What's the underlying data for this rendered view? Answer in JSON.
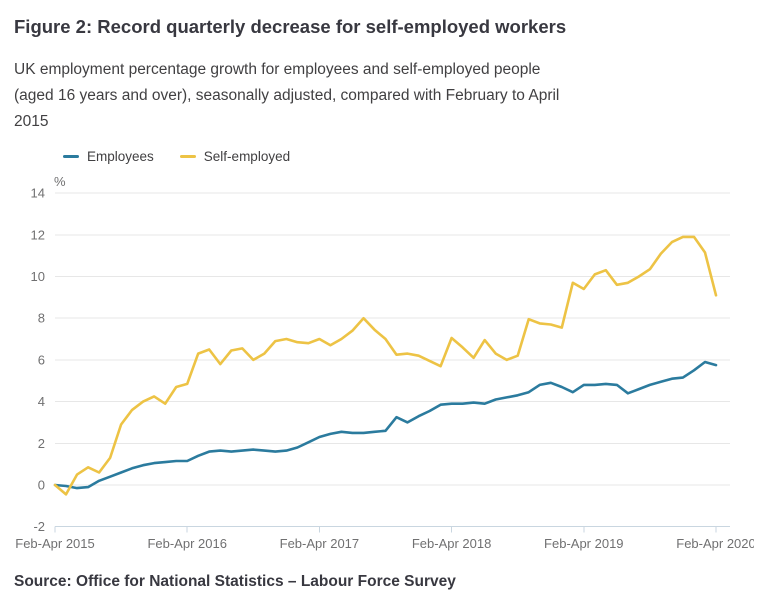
{
  "figure": {
    "title": "Figure 2: Record quarterly decrease for self-employed workers",
    "subtitle": "UK employment percentage growth for employees and self-employed people\n(aged 16 years and over), seasonally adjusted, compared with February to April\n2015",
    "source": "Source: Office for National Statistics – Labour Force Survey"
  },
  "colors": {
    "background": "#ffffff",
    "title_text": "#383840",
    "body_text": "#414042",
    "tick_text": "#707071",
    "gridline": "#e7e7e7",
    "axis_line": "#c9d6e0",
    "employees_line": "#2b7b9e",
    "self_employed_line": "#edc345"
  },
  "chart_data": {
    "type": "line",
    "title": "Figure 2: Record quarterly decrease for self-employed workers",
    "xlabel": "",
    "ylabel": "%",
    "ylim": [
      -2,
      14
    ],
    "y_ticks": [
      14,
      12,
      10,
      8,
      6,
      4,
      2,
      0,
      -2
    ],
    "grid": "horizontal",
    "legend_position": "top-left",
    "x_unit": "months since Feb-Apr 2015 (rolling three-month periods)",
    "x_tick_months": [
      0,
      12,
      24,
      36,
      48,
      60
    ],
    "x_tick_labels": [
      "Feb-Apr 2015",
      "Feb-Apr 2016",
      "Feb-Apr 2017",
      "Feb-Apr 2018",
      "Feb-Apr 2019",
      "Feb-Apr 2020"
    ],
    "series": [
      {
        "name": "Employees",
        "color": "#2b7b9e",
        "values": [
          0,
          -0.05,
          -0.15,
          -0.1,
          0.2,
          0.4,
          0.6,
          0.8,
          0.95,
          1.05,
          1.1,
          1.15,
          1.15,
          1.4,
          1.6,
          1.65,
          1.6,
          1.65,
          1.7,
          1.65,
          1.6,
          1.65,
          1.8,
          2.05,
          2.3,
          2.45,
          2.55,
          2.5,
          2.5,
          2.55,
          2.6,
          3.25,
          3.0,
          3.3,
          3.55,
          3.85,
          3.9,
          3.9,
          3.95,
          3.9,
          4.1,
          4.2,
          4.3,
          4.45,
          4.8,
          4.9,
          4.7,
          4.45,
          4.8,
          4.8,
          4.85,
          4.8,
          4.4,
          4.6,
          4.8,
          4.95,
          5.1,
          5.15,
          5.5,
          5.9,
          5.75
        ]
      },
      {
        "name": "Self-employed",
        "color": "#edc345",
        "values": [
          0,
          -0.45,
          0.5,
          0.85,
          0.6,
          1.3,
          2.9,
          3.6,
          4.0,
          4.25,
          3.9,
          4.7,
          4.85,
          6.3,
          6.5,
          5.8,
          6.45,
          6.55,
          6.0,
          6.3,
          6.9,
          7.0,
          6.85,
          6.8,
          7.0,
          6.7,
          7.0,
          7.4,
          8.0,
          7.45,
          7.0,
          6.25,
          6.3,
          6.2,
          5.95,
          5.7,
          7.05,
          6.6,
          6.1,
          6.95,
          6.3,
          6.0,
          6.2,
          7.95,
          7.75,
          7.7,
          7.55,
          9.7,
          9.4,
          10.1,
          10.3,
          9.6,
          9.7,
          10.0,
          10.35,
          11.1,
          11.65,
          11.9,
          11.9,
          11.15,
          9.1
        ]
      }
    ]
  }
}
